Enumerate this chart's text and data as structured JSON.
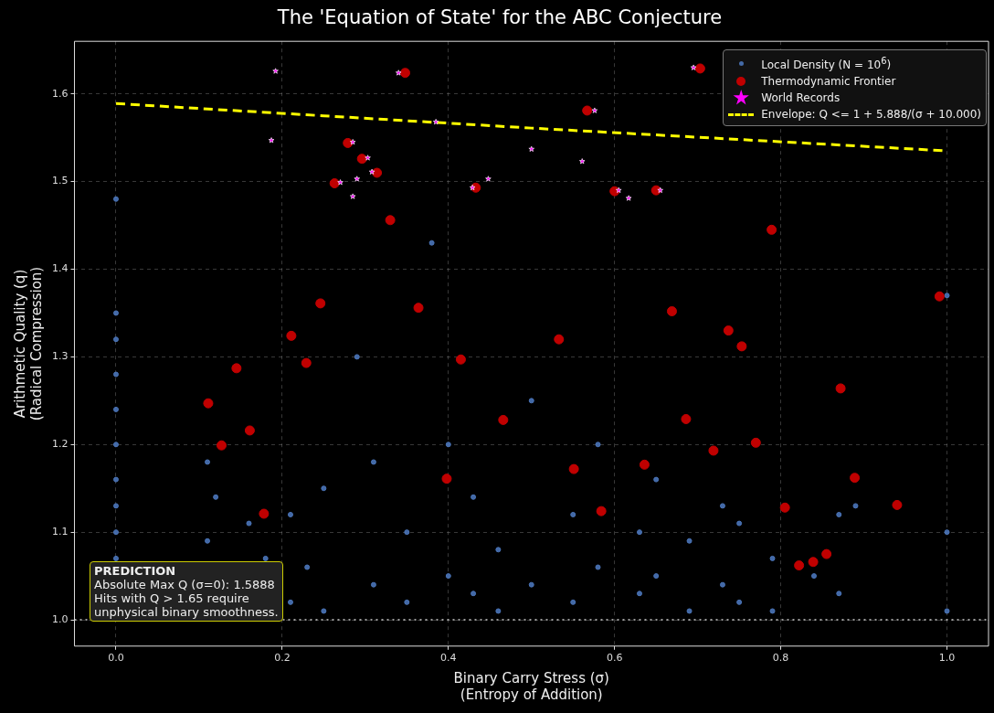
{
  "chart_data": {
    "type": "scatter",
    "title": "The 'Equation of State' for the ABC Conjecture",
    "xlabel": "Binary Carry Stress (σ)\n(Entropy of Addition)",
    "ylabel": "Arithmetic Quality (q)\n(Radical Compression)",
    "xlim": [
      -0.05,
      1.05
    ],
    "xticks": [
      {
        "value": 0,
        "label": "0.0"
      },
      0.2,
      0.4,
      0.6,
      0.8,
      {
        "value": 1,
        "label": "1.0"
      }
    ],
    "ylim": [
      0.97,
      1.66
    ],
    "yticks": [
      {
        "value": 1,
        "label": "1.0"
      },
      1.1,
      1.2,
      1.3,
      1.4,
      1.5,
      1.6
    ],
    "grid": true,
    "legend": "top right",
    "ref_lines": [
      {
        "axis": "y",
        "value": 1.0,
        "color": "#cccccc",
        "line_style": "dotted"
      }
    ],
    "annotations": [
      "PREDICTION\nAbsolute Max Q (σ=0): 1.5888\nHits with Q > 1.65 require\nunphysical binary smoothness."
    ],
    "series": [
      {
        "name": "Local Density (N = 10$^{6}$)",
        "marker": "circle",
        "color": "#4a74b8",
        "x": [
          0,
          0,
          0,
          0,
          0,
          0,
          0,
          0,
          0,
          0,
          0.11,
          0.11,
          0.12,
          0.16,
          0.18,
          0.21,
          0.21,
          0.23,
          0.25,
          0.25,
          0.29,
          0.31,
          0.31,
          0.35,
          0.35,
          0.38,
          0.4,
          0.4,
          0.43,
          0.43,
          0.46,
          0.46,
          0.5,
          0.5,
          0.55,
          0.55,
          0.58,
          0.58,
          0.63,
          0.63,
          0.65,
          0.65,
          0.69,
          0.69,
          0.73,
          0.73,
          0.75,
          0.75,
          0.79,
          0.79,
          0.84,
          0.87,
          0.87,
          0.89,
          1.0,
          1.0,
          1.0
        ],
        "values": [
          1.1,
          1.13,
          1.16,
          1.2,
          1.24,
          1.28,
          1.32,
          1.35,
          1.48,
          1.07,
          1.09,
          1.18,
          1.14,
          1.11,
          1.07,
          1.02,
          1.12,
          1.06,
          1.01,
          1.15,
          1.3,
          1.04,
          1.18,
          1.02,
          1.1,
          1.43,
          1.05,
          1.2,
          1.03,
          1.14,
          1.01,
          1.08,
          1.04,
          1.25,
          1.02,
          1.12,
          1.06,
          1.2,
          1.03,
          1.1,
          1.05,
          1.16,
          1.01,
          1.09,
          1.04,
          1.13,
          1.02,
          1.11,
          1.01,
          1.07,
          1.05,
          1.03,
          1.12,
          1.13,
          1.01,
          1.1,
          1.37
        ]
      },
      {
        "name": "Thermodynamic Frontier",
        "marker": "circle",
        "color": "#c00000",
        "x": [
          0.111,
          0.127,
          0.145,
          0.161,
          0.178,
          0.211,
          0.229,
          0.246,
          0.263,
          0.279,
          0.296,
          0.314,
          0.33,
          0.348,
          0.364,
          0.398,
          0.415,
          0.433,
          0.466,
          0.533,
          0.551,
          0.567,
          0.584,
          0.6,
          0.636,
          0.65,
          0.669,
          0.686,
          0.703,
          0.719,
          0.737,
          0.753,
          0.77,
          0.789,
          0.805,
          0.822,
          0.839,
          0.855,
          0.872,
          0.889,
          0.94,
          0.991
        ],
        "values": [
          1.247,
          1.199,
          1.287,
          1.216,
          1.121,
          1.324,
          1.293,
          1.361,
          1.498,
          1.544,
          1.526,
          1.51,
          1.456,
          1.624,
          1.356,
          1.161,
          1.297,
          1.493,
          1.228,
          1.32,
          1.172,
          1.581,
          1.124,
          1.489,
          1.177,
          1.49,
          1.352,
          1.229,
          1.629,
          1.193,
          1.33,
          1.312,
          1.202,
          1.445,
          1.128,
          1.062,
          1.066,
          1.075,
          1.264,
          1.162,
          1.131,
          1.369
        ]
      },
      {
        "name": "World Records",
        "marker": "star",
        "color": "#ff00ff",
        "x": [
          0.192,
          0.187,
          0.285,
          0.303,
          0.308,
          0.29,
          0.27,
          0.285,
          0.34,
          0.385,
          0.429,
          0.448,
          0.5,
          0.576,
          0.561,
          0.605,
          0.617,
          0.655,
          0.695
        ],
        "values": [
          1.626,
          1.547,
          1.545,
          1.527,
          1.511,
          1.503,
          1.499,
          1.483,
          1.624,
          1.568,
          1.493,
          1.503,
          1.537,
          1.581,
          1.523,
          1.49,
          1.481,
          1.49,
          1.63
        ]
      },
      {
        "name": "Envelope: Q <= 1 + 5.888/(σ + 10.000)",
        "type": "line",
        "marker": "none",
        "line_style": "dashed",
        "color": "#ffff00",
        "x": [
          0,
          0.25,
          0.5,
          0.75,
          1.0
        ],
        "values": [
          1.589,
          1.575,
          1.561,
          1.548,
          1.535
        ]
      }
    ]
  }
}
